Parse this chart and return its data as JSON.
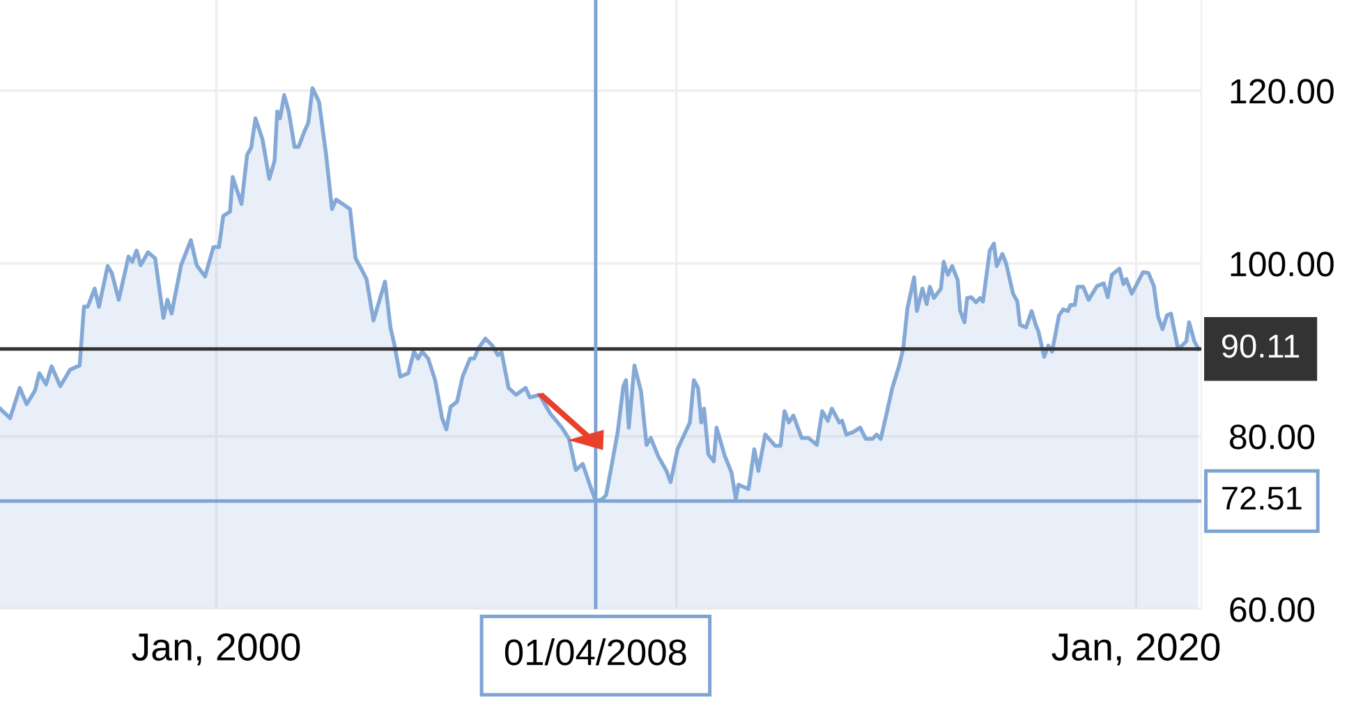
{
  "chart_data": {
    "type": "area",
    "series": [
      {
        "color": "#84a9d6",
        "x": [
          "1995-04-19",
          "1995-07-08",
          "1995-09-23",
          "1995-11-17",
          "1996-01-22",
          "1996-02-25",
          "1996-04-19",
          "1996-06-02",
          "1996-08-10",
          "1996-10-26",
          "1997-01-11",
          "1997-02-14",
          "1997-03-16",
          "1997-05-10",
          "1997-06-13",
          "1997-08-21",
          "1997-09-23",
          "1997-11-17",
          "1998-02-03",
          "1998-03-05",
          "1998-04-08",
          "1998-05-10",
          "1998-07-08",
          "1998-09-02",
          "1998-11-07",
          "1998-12-09",
          "1999-01-11",
          "1999-03-27",
          "1999-06-13",
          "1999-07-29",
          "1999-10-04",
          "1999-12-09",
          "2000-01-22",
          "2000-02-25",
          "2000-04-19",
          "2000-05-10",
          "2000-07-19",
          "2000-09-02",
          "2000-10-04",
          "2000-11-07",
          "2001-01-01",
          "2001-02-25",
          "2001-04-08",
          "2001-04-29",
          "2001-05-21",
          "2001-06-23",
          "2001-07-29",
          "2001-09-13",
          "2001-10-15",
          "2001-11-28",
          "2002-01-01",
          "2002-02-03",
          "2002-03-27",
          "2002-05-21",
          "2002-07-08",
          "2002-08-10",
          "2002-11-28",
          "2003-01-11",
          "2003-02-25",
          "2003-04-08",
          "2003-06-02",
          "2003-09-02",
          "2003-10-15",
          "2003-11-17",
          "2004-01-01",
          "2004-03-05",
          "2004-04-19",
          "2004-05-21",
          "2004-06-23",
          "2004-08-10",
          "2004-10-04",
          "2004-11-28",
          "2005-01-01",
          "2005-02-03",
          "2005-03-27",
          "2005-05-10",
          "2005-07-08",
          "2005-08-10",
          "2005-09-13",
          "2005-11-07",
          "2006-01-01",
          "2006-02-14",
          "2006-03-16",
          "2006-05-10",
          "2006-07-08",
          "2006-09-23",
          "2006-10-26",
          "2007-01-11",
          "2007-04-08",
          "2007-07-08",
          "2007-09-02",
          "2007-10-26",
          "2007-12-20",
          "2008-02-14",
          "2008-04-01",
          "2008-05-21",
          "2008-06-23",
          "2008-07-29",
          "2008-09-23",
          "2008-11-07",
          "2008-11-28",
          "2008-12-20",
          "2009-02-03",
          "2009-03-27",
          "2009-05-10",
          "2009-06-13",
          "2009-08-10",
          "2009-10-15",
          "2009-11-17",
          "2010-01-11",
          "2010-04-19",
          "2010-05-21",
          "2010-06-23",
          "2010-07-19",
          "2010-08-10",
          "2010-09-13",
          "2010-10-26",
          "2010-11-17",
          "2011-01-22",
          "2011-03-16",
          "2011-04-19",
          "2011-05-10",
          "2011-07-29",
          "2011-09-13",
          "2011-10-15",
          "2011-12-09",
          "2012-02-25",
          "2012-04-08",
          "2012-05-10",
          "2012-06-13",
          "2012-07-19",
          "2012-09-23",
          "2012-11-17",
          "2013-01-22",
          "2013-03-05",
          "2013-04-19",
          "2013-05-21",
          "2013-07-19",
          "2013-08-10",
          "2013-09-13",
          "2013-11-07",
          "2014-01-01",
          "2014-02-14",
          "2014-04-08",
          "2014-05-10",
          "2014-06-13",
          "2014-07-29",
          "2014-09-13",
          "2014-11-07",
          "2014-12-09",
          "2015-01-11",
          "2015-03-05",
          "2015-03-27",
          "2015-05-10",
          "2015-06-13",
          "2015-07-08",
          "2015-08-10",
          "2015-10-04",
          "2015-10-26",
          "2015-11-28",
          "2016-01-01",
          "2016-02-14",
          "2016-03-05",
          "2016-04-08",
          "2016-04-29",
          "2016-06-02",
          "2016-07-08",
          "2016-08-10",
          "2016-09-02",
          "2016-10-26",
          "2016-11-28",
          "2016-12-20",
          "2017-02-03",
          "2017-03-05",
          "2017-04-29",
          "2017-06-02",
          "2017-06-23",
          "2017-08-10",
          "2017-09-23",
          "2017-10-26",
          "2017-11-17",
          "2018-01-01",
          "2018-02-03",
          "2018-03-05",
          "2018-04-29",
          "2018-06-02",
          "2018-07-08",
          "2018-07-29",
          "2018-09-02",
          "2018-09-23",
          "2018-11-07",
          "2018-12-20",
          "2019-02-25",
          "2019-04-19",
          "2019-05-21",
          "2019-06-23",
          "2019-08-21",
          "2019-09-23",
          "2019-10-15",
          "2019-11-28",
          "2020-02-25",
          "2020-04-08",
          "2020-05-21",
          "2020-06-23",
          "2020-07-29",
          "2020-09-02",
          "2020-10-04",
          "2020-11-28",
          "2021-01-01",
          "2021-02-03",
          "2021-02-25",
          "2021-04-08",
          "2021-05-10"
        ],
        "values": [
          83.2,
          82.1,
          85.6,
          83.7,
          85.3,
          87.3,
          86.0,
          88.1,
          85.8,
          87.7,
          88.2,
          95.0,
          95.0,
          97.1,
          95.0,
          99.7,
          98.9,
          95.8,
          100.8,
          100.2,
          101.5,
          99.8,
          101.3,
          100.6,
          93.7,
          95.8,
          94.2,
          99.8,
          102.7,
          99.8,
          98.5,
          101.9,
          101.9,
          105.5,
          106.0,
          110.0,
          106.9,
          112.6,
          113.4,
          116.8,
          114.4,
          109.8,
          111.9,
          117.6,
          116.8,
          119.5,
          117.6,
          113.5,
          113.5,
          115.2,
          116.3,
          120.3,
          118.7,
          112.7,
          106.3,
          107.4,
          106.3,
          100.6,
          99.4,
          98.2,
          93.4,
          97.9,
          92.6,
          90.5,
          86.9,
          87.3,
          89.8,
          89.0,
          89.8,
          89.0,
          86.5,
          82.1,
          80.8,
          83.4,
          84.0,
          86.9,
          89.0,
          89.0,
          90.2,
          91.3,
          90.5,
          89.4,
          89.7,
          85.6,
          84.8,
          85.6,
          84.5,
          84.8,
          82.6,
          81.0,
          79.7,
          76.1,
          76.8,
          74.4,
          72.5,
          72.7,
          73.2,
          76.0,
          80.5,
          85.8,
          86.5,
          81.0,
          88.2,
          85.2,
          79.0,
          79.8,
          77.7,
          76.0,
          74.7,
          78.5,
          81.6,
          86.5,
          85.6,
          81.6,
          83.2,
          77.9,
          77.1,
          81.0,
          77.7,
          75.8,
          72.7,
          74.4,
          73.9,
          78.5,
          76.0,
          80.2,
          78.9,
          78.9,
          82.9,
          81.6,
          82.4,
          79.8,
          79.8,
          79.0,
          82.9,
          81.8,
          83.2,
          81.6,
          81.8,
          80.2,
          80.5,
          81.0,
          79.7,
          79.7,
          80.2,
          79.7,
          82.6,
          85.6,
          88.2,
          90.2,
          94.8,
          98.4,
          94.5,
          97.1,
          95.3,
          97.3,
          96.0,
          97.1,
          100.2,
          98.7,
          99.7,
          98.1,
          94.5,
          93.2,
          96.0,
          96.1,
          95.5,
          96.0,
          95.6,
          101.5,
          102.3,
          99.7,
          101.1,
          100.0,
          96.5,
          95.6,
          92.9,
          92.6,
          94.5,
          92.9,
          92.1,
          89.2,
          90.5,
          89.8,
          94.0,
          94.7,
          94.5,
          95.2,
          95.2,
          97.3,
          97.3,
          95.8,
          97.4,
          97.7,
          96.1,
          98.7,
          99.4,
          97.6,
          98.2,
          96.5,
          99.0,
          98.9,
          97.4,
          93.9,
          92.4,
          94.0,
          94.2,
          90.2,
          90.5,
          91.0,
          93.2,
          91.0,
          90.1
        ]
      }
    ],
    "xlim": [
      "1995-04-19",
      "2021-06-02"
    ],
    "xticks": [
      {
        "value": "2000-01-01",
        "label": "Jan, 2000"
      },
      {
        "value": "2010-01-01",
        "label": null
      },
      {
        "value": "2020-01-01",
        "label": "Jan, 2020"
      }
    ],
    "ylim": [
      60,
      130.5
    ],
    "yticks": [
      {
        "value": 60,
        "label": "60.00"
      },
      {
        "value": 80,
        "label": "80.00"
      },
      {
        "value": 100,
        "label": "100.00"
      },
      {
        "value": 120,
        "label": "120.00"
      }
    ],
    "grid": true,
    "legend": false,
    "ref_lines": [
      {
        "axis": "y",
        "value": 90.11,
        "label": "90.11",
        "color": "#333333"
      },
      {
        "axis": "y",
        "value": 72.51,
        "label": "72.51",
        "color": "#7fa4d4"
      },
      {
        "axis": "x",
        "value": "2008-04-01",
        "label": "01/04/2008",
        "color": "#7fa4d4"
      }
    ]
  }
}
